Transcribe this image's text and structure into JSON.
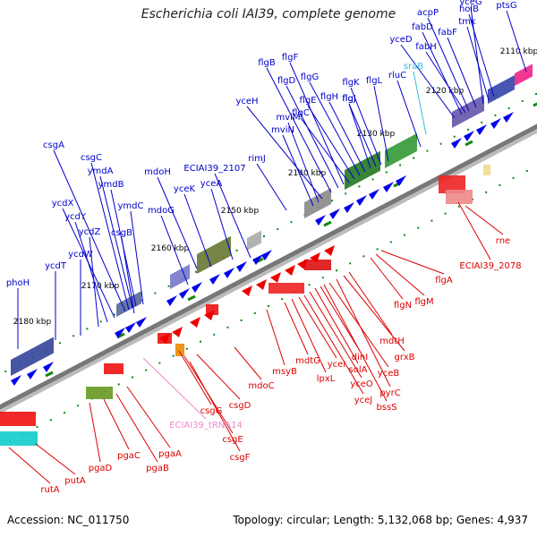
{
  "title": "Escherichia coli IAI39, complete genome",
  "footer": {
    "accession": "Accession: NC_011750",
    "stats": "Topology: circular; Length: 5,132,068 bp; Genes: 4,937"
  },
  "colors": {
    "forward_label": "#0000cc",
    "reverse_label": "#dd0000",
    "rna_label": "#ee88cc",
    "srna_label": "#33bbdd",
    "backbone": "#777777",
    "tick": "#118811"
  },
  "ticks": [
    {
      "label": "2110 kbp"
    },
    {
      "label": "2120 kbp"
    },
    {
      "label": "2130 kbp"
    },
    {
      "label": "2140 kbp"
    },
    {
      "label": "2150 kbp"
    },
    {
      "label": "2160 kbp"
    },
    {
      "label": "2170 kbp"
    },
    {
      "label": "2180 kbp"
    }
  ],
  "forward_genes": [
    "phoH",
    "ycdT",
    "ycdW",
    "ycdZ",
    "ycdY",
    "ycdX",
    "csgB",
    "csgA",
    "csgC",
    "ymdA",
    "ymdB",
    "ymdC",
    "mdoG",
    "mdoH",
    "yceK",
    "yceA",
    "ECIAI39_2107",
    "rimJ",
    "mviN",
    "mviM",
    "yceH",
    "flgB",
    "flgD",
    "flgF",
    "flgC",
    "flgE",
    "flgG",
    "flgH",
    "flgI",
    "flgJ",
    "flgK",
    "flgL",
    "rluC",
    "yceD",
    "fabD",
    "fabH",
    "acpP",
    "fabF",
    "yceG",
    "tmk",
    "holB",
    "ptsG"
  ],
  "reverse_genes": [
    "rutA",
    "putA",
    "pgaD",
    "pgaC",
    "pgaB",
    "pgaA",
    "csgG",
    "csgE",
    "csgF",
    "csgD",
    "mdoC",
    "msyB",
    "mdtG",
    "lpxL",
    "yceI",
    "yceJ",
    "yceO",
    "solA",
    "dinI",
    "bssS",
    "yceB",
    "pyrC",
    "grxB",
    "mdtH",
    "flgN",
    "flgM",
    "flgA",
    "ECIAI39_2078",
    "rne"
  ],
  "rna_genes": [
    "ECIAI39_tRNA14"
  ],
  "srna_genes": [
    "sraB"
  ]
}
